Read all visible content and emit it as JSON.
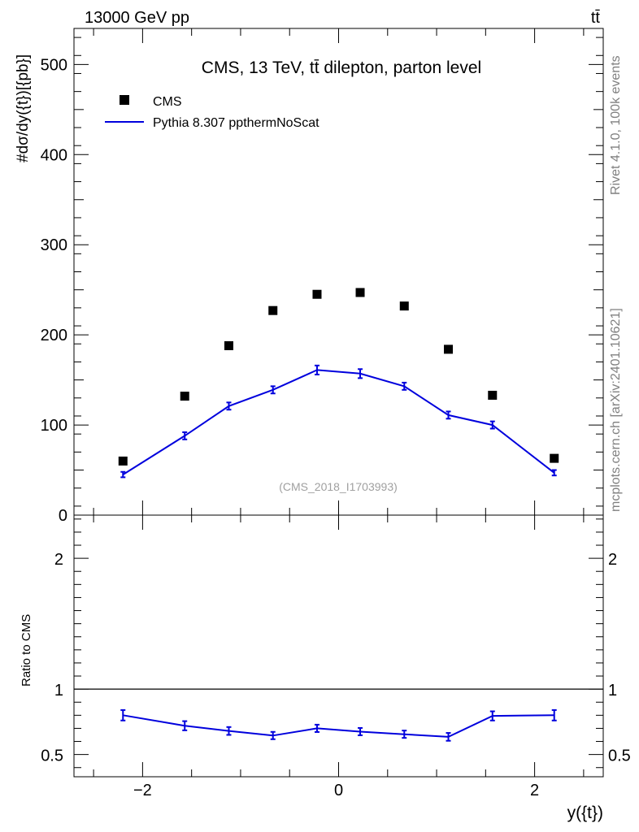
{
  "header": {
    "left": "13000 GeV pp",
    "right": "tt̄"
  },
  "side_labels": {
    "rivet": "Rivet 4.1.0,  100k events",
    "site": "mcplots.cern.ch [arXiv:2401.10621]"
  },
  "colors": {
    "data": "#000000",
    "mc": "#0000dd",
    "watermark": "#a0a0a0",
    "side": "#808080"
  },
  "chart_data": [
    {
      "type": "scatter",
      "panel": "main",
      "title": "CMS, 13 TeV, tt̄ dilepton, parton level",
      "ylabel": "#dσ/dy({t})[{pb}]",
      "xlabel": "",
      "watermark": "(CMS_2018_I1703993)",
      "xlim": [
        -2.7,
        2.7
      ],
      "ylim": [
        0,
        540
      ],
      "yticks": [
        0,
        100,
        200,
        300,
        400,
        500
      ],
      "ytick_labels": [
        "0",
        "100",
        "200",
        "300",
        "400",
        "500"
      ],
      "legend": {
        "position": "top-left",
        "entries": [
          "CMS",
          "Pythia 8.307 ppthermNoScat"
        ]
      },
      "x": [
        -2.2,
        -1.57,
        -1.12,
        -0.67,
        -0.22,
        0.22,
        0.67,
        1.12,
        1.57,
        2.2
      ],
      "series": [
        {
          "name": "CMS",
          "style": "markers",
          "values": [
            60,
            132,
            188,
            227,
            245,
            247,
            232,
            184,
            133,
            63
          ]
        },
        {
          "name": "Pythia 8.307 ppthermNoScat",
          "style": "line",
          "values": [
            45,
            88,
            121,
            139,
            161,
            157,
            143,
            111,
            100,
            47
          ],
          "errors": [
            3,
            4,
            4,
            4,
            5,
            5,
            4,
            4,
            4,
            3
          ]
        }
      ]
    },
    {
      "type": "line",
      "panel": "ratio",
      "ylabel": "Ratio to CMS",
      "xlabel": "y({t})",
      "xlim": [
        -2.7,
        2.7
      ],
      "ylim": [
        0.33,
        2.33
      ],
      "yticks": [
        0.5,
        1,
        2
      ],
      "ytick_labels": [
        "0.5",
        "1",
        "2"
      ],
      "xticks": [
        -2,
        0,
        2
      ],
      "xtick_labels": [
        "−2",
        "0",
        "2"
      ],
      "reference": 1,
      "x": [
        -2.2,
        -1.57,
        -1.12,
        -0.67,
        -0.22,
        0.22,
        0.67,
        1.12,
        1.57,
        2.2
      ],
      "series": [
        {
          "name": "Pythia 8.307 ppthermNoScat / CMS",
          "values": [
            0.8,
            0.72,
            0.68,
            0.645,
            0.7,
            0.675,
            0.655,
            0.635,
            0.795,
            0.8
          ],
          "errors": [
            0.04,
            0.035,
            0.03,
            0.028,
            0.028,
            0.028,
            0.028,
            0.03,
            0.035,
            0.04
          ]
        }
      ]
    }
  ]
}
